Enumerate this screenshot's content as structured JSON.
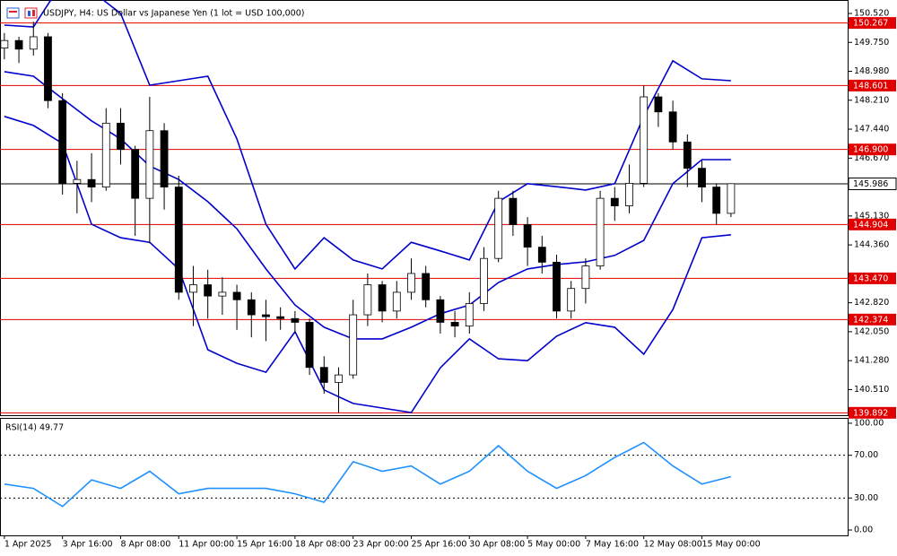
{
  "chart_data": [
    {
      "type": "candlestick",
      "title": "USDJPY, H4:  US Dollar vs Japanese Yen (1 lot = USD 100,000)",
      "xlim": [
        -0.3,
        58.03
      ],
      "ylim": [
        139.828,
        150.878
      ],
      "xticks": [
        {
          "value": 0,
          "label": "1 Apr 2025"
        },
        {
          "value": 4,
          "label": "3 Apr 16:00"
        },
        {
          "value": 8,
          "label": "8 Apr 08:00"
        },
        {
          "value": 12,
          "label": "11 Apr 00:00"
        },
        {
          "value": 16,
          "label": "15 Apr 16:00"
        },
        {
          "value": 20,
          "label": "18 Apr 08:00"
        },
        {
          "value": 24,
          "label": "23 Apr 00:00"
        },
        {
          "value": 28,
          "label": "25 Apr 16:00"
        },
        {
          "value": 32,
          "label": "30 Apr 08:00"
        },
        {
          "value": 36,
          "label": "5 May 00:00"
        },
        {
          "value": 40,
          "label": "7 May 16:00"
        },
        {
          "value": 44,
          "label": "12 May 08:00"
        },
        {
          "value": 48,
          "label": "15 May 00:00"
        }
      ],
      "yticks": [
        {
          "value": 150.52,
          "label": "150.520"
        },
        {
          "value": 149.75,
          "label": "149.750"
        },
        {
          "value": 148.98,
          "label": "148.980"
        },
        {
          "value": 148.21,
          "label": "148.210"
        },
        {
          "value": 147.44,
          "label": "147.440"
        },
        {
          "value": 146.67,
          "label": "146.670"
        },
        {
          "value": 145.13,
          "label": "145.130"
        },
        {
          "value": 144.36,
          "label": "144.360"
        },
        {
          "value": 142.82,
          "label": "142.820"
        },
        {
          "value": 142.05,
          "label": "142.050"
        },
        {
          "value": 141.28,
          "label": "141.280"
        },
        {
          "value": 140.51,
          "label": "140.510"
        }
      ],
      "up_color": "#ffffff",
      "down_color": "#000000",
      "candles": [
        [
          149.6,
          150.0,
          149.3,
          149.8
        ],
        [
          149.8,
          149.9,
          149.2,
          149.57
        ],
        [
          149.57,
          150.3,
          149.4,
          149.9
        ],
        [
          149.9,
          150.0,
          148.0,
          148.2
        ],
        [
          148.2,
          148.4,
          145.7,
          146.0
        ],
        [
          146.0,
          146.6,
          145.2,
          146.1
        ],
        [
          146.1,
          146.8,
          145.5,
          145.9
        ],
        [
          145.9,
          148.0,
          145.8,
          147.6
        ],
        [
          147.6,
          148.0,
          146.5,
          146.9
        ],
        [
          146.9,
          147.0,
          144.6,
          145.6
        ],
        [
          145.6,
          148.3,
          144.4,
          147.4
        ],
        [
          147.4,
          147.6,
          145.3,
          145.9
        ],
        [
          145.9,
          146.2,
          142.9,
          143.1
        ],
        [
          143.1,
          143.8,
          142.2,
          143.3
        ],
        [
          143.3,
          143.7,
          142.4,
          143.0
        ],
        [
          143.0,
          143.5,
          142.5,
          143.1
        ],
        [
          143.1,
          143.3,
          142.1,
          142.9
        ],
        [
          142.9,
          143.1,
          141.9,
          142.5
        ],
        [
          142.5,
          142.9,
          141.8,
          142.45
        ],
        [
          142.45,
          142.7,
          142.1,
          142.4
        ],
        [
          142.4,
          142.6,
          142.0,
          142.3
        ],
        [
          142.3,
          142.4,
          140.9,
          141.1
        ],
        [
          141.1,
          141.4,
          140.4,
          140.7
        ],
        [
          140.7,
          141.1,
          139.9,
          140.9
        ],
        [
          140.9,
          142.9,
          140.8,
          142.5
        ],
        [
          142.5,
          143.6,
          142.2,
          143.3
        ],
        [
          143.3,
          143.4,
          142.3,
          142.6
        ],
        [
          142.6,
          143.4,
          142.4,
          143.1
        ],
        [
          143.1,
          144.0,
          142.9,
          143.6
        ],
        [
          143.6,
          143.8,
          142.7,
          142.9
        ],
        [
          142.9,
          143.0,
          142.0,
          142.3
        ],
        [
          142.3,
          142.6,
          141.9,
          142.2
        ],
        [
          142.2,
          143.1,
          142.0,
          142.8
        ],
        [
          142.8,
          144.3,
          142.6,
          144.0
        ],
        [
          144.0,
          145.8,
          143.9,
          145.6
        ],
        [
          145.6,
          145.8,
          144.6,
          144.9
        ],
        [
          144.9,
          145.1,
          143.8,
          144.3
        ],
        [
          144.3,
          144.6,
          143.6,
          143.9
        ],
        [
          143.9,
          144.1,
          142.4,
          142.6
        ],
        [
          142.6,
          143.4,
          142.4,
          143.2
        ],
        [
          143.2,
          144.0,
          142.8,
          143.8
        ],
        [
          143.8,
          145.8,
          143.7,
          145.6
        ],
        [
          145.6,
          145.9,
          145.0,
          145.4
        ],
        [
          145.4,
          146.5,
          145.2,
          146.0
        ],
        [
          146.0,
          148.6,
          145.9,
          148.3
        ],
        [
          148.3,
          148.4,
          147.5,
          147.9
        ],
        [
          147.9,
          148.2,
          146.9,
          147.1
        ],
        [
          147.1,
          147.3,
          145.9,
          146.4
        ],
        [
          146.4,
          146.6,
          145.5,
          145.9
        ],
        [
          145.9,
          146.0,
          144.9,
          145.2
        ],
        [
          145.2,
          146.0,
          145.1,
          145.99
        ]
      ],
      "series": [
        {
          "color": "#0000cc",
          "x": [
            0,
            2,
            4,
            6,
            8,
            10,
            12,
            14,
            16,
            18,
            20,
            22,
            24,
            26,
            28,
            30,
            32,
            34,
            36,
            38,
            40,
            42,
            44,
            46,
            48,
            50
          ],
          "values": [
            150.21,
            150.16,
            151.36,
            151.12,
            150.52,
            148.61,
            148.73,
            148.85,
            147.18,
            144.91,
            143.72,
            144.55,
            143.96,
            143.72,
            144.43,
            144.2,
            143.96,
            145.51,
            145.99,
            145.91,
            145.82,
            145.99,
            147.78,
            149.26,
            148.78,
            148.73
          ]
        },
        {
          "color": "#0000cc",
          "x": [
            0,
            2,
            4,
            6,
            8,
            10,
            12,
            14,
            16,
            18,
            20,
            22,
            24,
            26,
            28,
            30,
            32,
            34,
            36,
            38,
            40,
            42,
            44,
            46,
            48,
            50
          ],
          "values": [
            148.97,
            148.85,
            148.25,
            147.66,
            147.18,
            146.46,
            146.1,
            145.51,
            144.79,
            143.72,
            142.76,
            142.17,
            141.86,
            141.86,
            142.17,
            142.53,
            142.76,
            143.36,
            143.72,
            143.84,
            143.91,
            144.08,
            144.48,
            145.99,
            146.63,
            146.63
          ]
        },
        {
          "color": "#0000cc",
          "x": [
            0,
            2,
            4,
            6,
            8,
            10,
            12,
            14,
            16,
            18,
            20,
            22,
            24,
            26,
            28,
            30,
            32,
            34,
            36,
            38,
            40,
            42,
            44,
            46,
            48,
            50
          ],
          "values": [
            147.78,
            147.54,
            147.06,
            144.91,
            144.55,
            144.43,
            143.72,
            141.57,
            141.21,
            140.97,
            142.05,
            140.5,
            140.14,
            140.02,
            139.9,
            141.09,
            141.86,
            141.33,
            141.28,
            141.93,
            142.29,
            142.17,
            141.45,
            142.64,
            144.55,
            144.63
          ]
        }
      ],
      "level_color": "#e00000",
      "levels": [
        150.267,
        148.601,
        {
          "value": 146.9,
          "label": "146.900"
        },
        144.904,
        {
          "value": 143.47,
          "label": "143.470"
        },
        142.374,
        139.892
      ],
      "last_price": 145.986,
      "last_color": "#000000"
    },
    {
      "type": "line",
      "title": "RSI(14) 49.77",
      "ylim": [
        -5,
        105
      ],
      "yticks": [
        {
          "value": 100,
          "label": "100.00"
        },
        {
          "value": 70,
          "label": "70.00"
        },
        {
          "value": 30,
          "label": "30.00"
        },
        {
          "value": 0,
          "label": "0.00"
        }
      ],
      "series": [
        {
          "color": "#1e90ff",
          "x": [
            0,
            2,
            4,
            6,
            8,
            10,
            12,
            14,
            16,
            18,
            20,
            22,
            24,
            26,
            28,
            30,
            32,
            34,
            36,
            38,
            40,
            42,
            44,
            46,
            48,
            50
          ],
          "values": [
            43,
            39,
            22,
            47,
            39,
            55,
            34,
            39,
            39,
            39,
            34,
            26,
            64,
            55,
            60,
            43,
            55,
            79,
            55,
            39,
            51,
            68,
            82,
            60,
            43,
            50
          ]
        }
      ]
    }
  ]
}
